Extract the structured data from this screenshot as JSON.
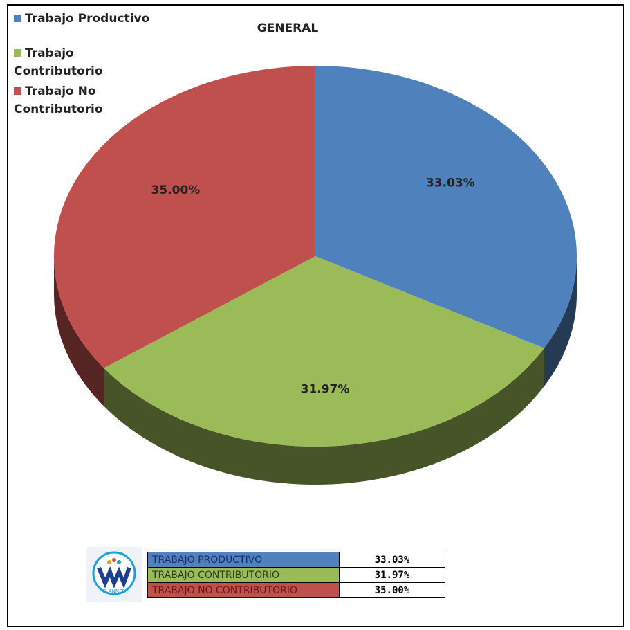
{
  "chart_data": {
    "type": "pie3d",
    "title": "GENERAL",
    "series": [
      {
        "name": "Trabajo Productivo",
        "color": "#4f81bd",
        "values": [
          33.03
        ],
        "value_labels": [
          "33.03%"
        ]
      },
      {
        "name": "Trabajo Contributorio",
        "color": "#9bbb59",
        "values": [
          31.97
        ],
        "value_labels": [
          "31.97%"
        ]
      },
      {
        "name": "Trabajo No Contributorio",
        "color": "#c0504d",
        "values": [
          35.0
        ],
        "value_labels": [
          "35.00%"
        ]
      }
    ]
  },
  "table": {
    "rows": [
      [
        "TRABAJO PRODUCTIVO",
        "33.03%"
      ],
      [
        "TRABAJO CONTRIBUTORIO",
        "31.97%"
      ],
      [
        "TRABAJO NO CONTRIBUTORIO",
        "35.00%"
      ]
    ]
  },
  "logo": {
    "text": "PLANNER"
  }
}
